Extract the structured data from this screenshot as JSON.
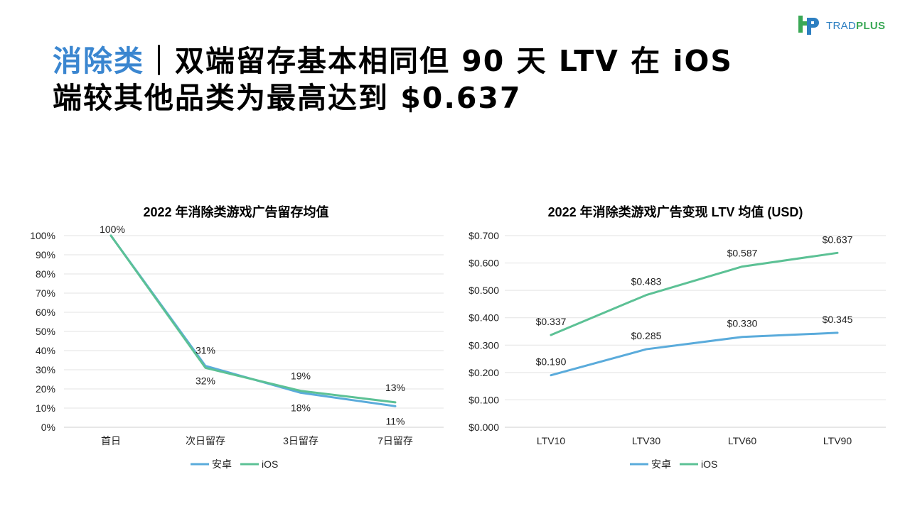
{
  "logo": {
    "text_part1": "TRAD",
    "text_part2": "PLUS"
  },
  "headline": {
    "accent": "消除类",
    "rest": "｜双端留存基本相同但 90 天 LTV 在 iOS 端较其他品类为最高达到 $0.637"
  },
  "colors": {
    "android": "#5aabdb",
    "ios": "#5cc195",
    "accent": "#3a86d0"
  },
  "chart_data": [
    {
      "type": "line",
      "title": "2022 年消除类游戏广告留存均值",
      "categories": [
        "首日",
        "次日留存",
        "3日留存",
        "7日留存"
      ],
      "ylim": [
        0,
        100
      ],
      "yticks": [
        0,
        10,
        20,
        30,
        40,
        50,
        60,
        70,
        80,
        90,
        100
      ],
      "ytick_labels": [
        "0%",
        "10%",
        "20%",
        "30%",
        "40%",
        "50%",
        "60%",
        "70%",
        "80%",
        "90%",
        "100%"
      ],
      "series": [
        {
          "name": "安卓",
          "values": [
            100,
            32,
            18,
            11
          ],
          "labels": [
            "",
            "32%",
            "18%",
            "11%"
          ]
        },
        {
          "name": "iOS",
          "values": [
            100,
            31,
            19,
            13
          ],
          "labels": [
            "100%",
            "31%",
            "19%",
            "13%"
          ]
        }
      ],
      "grid": true,
      "legend": "bottom"
    },
    {
      "type": "line",
      "title": "2022 年消除类游戏广告变现 LTV 均值 (USD)",
      "categories": [
        "LTV10",
        "LTV30",
        "LTV60",
        "LTV90"
      ],
      "ylim": [
        0,
        0.7
      ],
      "yticks": [
        0,
        0.1,
        0.2,
        0.3,
        0.4,
        0.5,
        0.6,
        0.7
      ],
      "ytick_labels": [
        "$0.000",
        "$0.100",
        "$0.200",
        "$0.300",
        "$0.400",
        "$0.500",
        "$0.600",
        "$0.700"
      ],
      "series": [
        {
          "name": "安卓",
          "values": [
            0.19,
            0.285,
            0.33,
            0.345
          ],
          "labels": [
            "$0.190",
            "$0.285",
            "$0.330",
            "$0.345"
          ]
        },
        {
          "name": "iOS",
          "values": [
            0.337,
            0.483,
            0.587,
            0.637
          ],
          "labels": [
            "$0.337",
            "$0.483",
            "$0.587",
            "$0.637"
          ]
        }
      ],
      "grid": true,
      "legend": "bottom"
    }
  ]
}
